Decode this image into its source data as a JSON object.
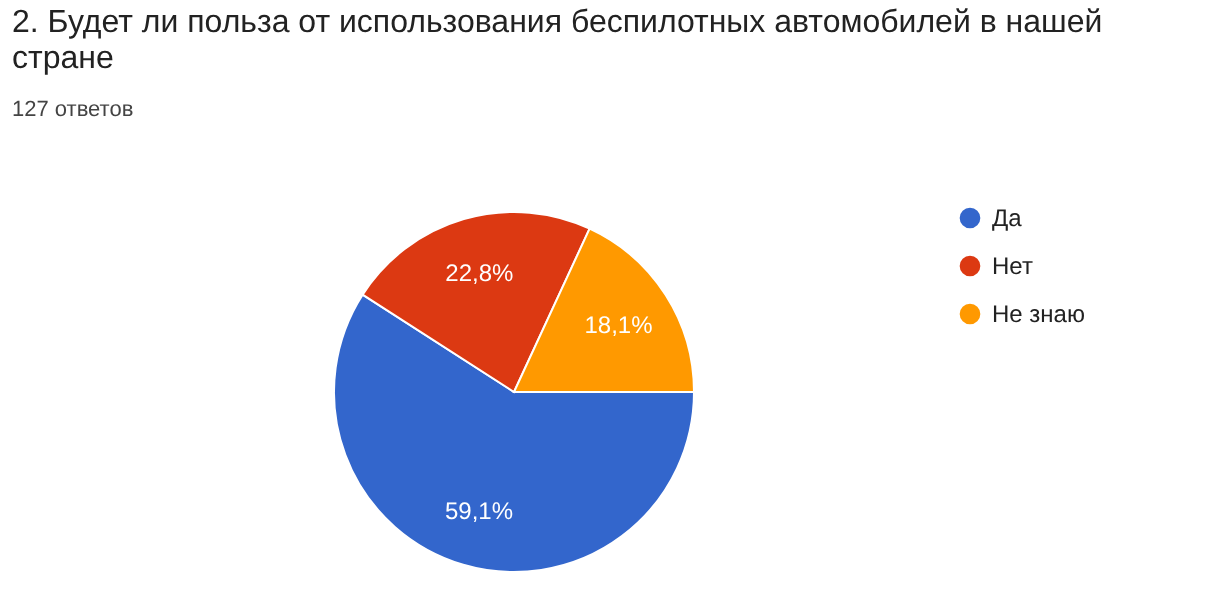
{
  "chart_data": {
    "type": "pie",
    "title": "2. Будет ли польза от использования беспилотных автомобилей в нашей стране",
    "subtitle": "127 ответов",
    "categories": [
      "Да",
      "Нет",
      "Не знаю"
    ],
    "values": [
      59.1,
      22.8,
      18.1
    ],
    "value_labels": [
      "59,1%",
      "22,8%",
      "18,1%"
    ],
    "colors": [
      "#3366cc",
      "#dc3912",
      "#ff9900"
    ],
    "legend": "right"
  }
}
